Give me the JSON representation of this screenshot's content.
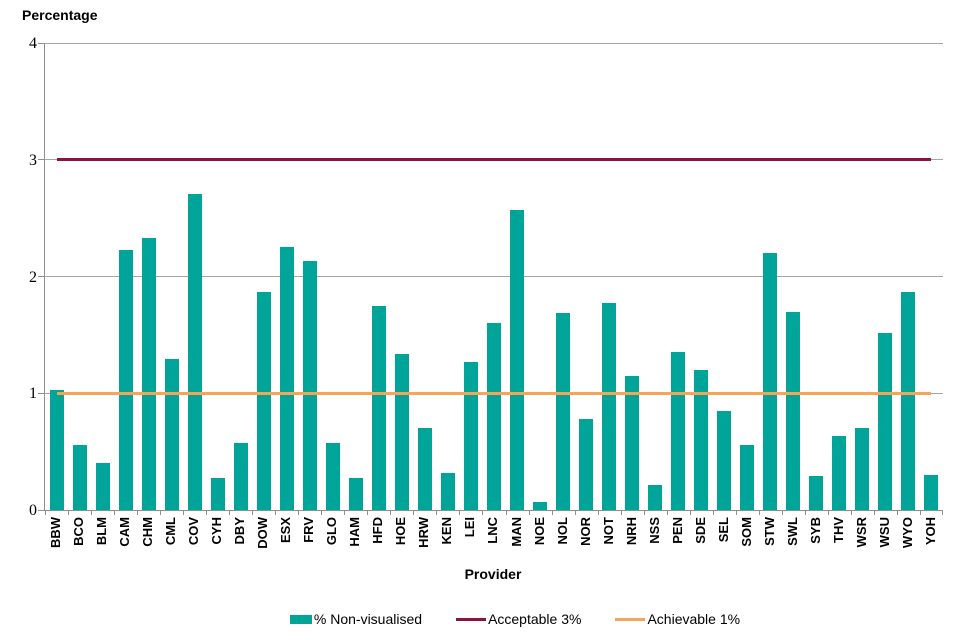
{
  "chart_data": {
    "type": "bar",
    "title": "",
    "ylabel": "Percentage",
    "xlabel": "Provider",
    "ylim": [
      0,
      4
    ],
    "yticks": [
      0,
      1,
      2,
      3,
      4
    ],
    "grid": true,
    "legend_position": "bottom",
    "axis_color": "#8E8E8E",
    "categories": [
      "BBW",
      "BCO",
      "BLM",
      "CAM",
      "CHM",
      "CML",
      "COV",
      "CYH",
      "DBY",
      "DOW",
      "ESX",
      "FRV",
      "GLO",
      "HAM",
      "HFD",
      "HOE",
      "HRW",
      "KEN",
      "LEI",
      "LNC",
      "MAN",
      "NOE",
      "NOL",
      "NOR",
      "NOT",
      "NRH",
      "NSS",
      "PEN",
      "SDE",
      "SEL",
      "SOM",
      "STW",
      "SWL",
      "SYB",
      "THV",
      "WSR",
      "WSU",
      "WYO",
      "YOH"
    ],
    "series": [
      {
        "name": "% Non-visualised",
        "type": "bar",
        "color": "#00A499",
        "values": [
          1.03,
          0.56,
          0.4,
          2.23,
          2.33,
          1.29,
          2.71,
          0.27,
          0.57,
          1.87,
          2.25,
          2.13,
          0.57,
          0.27,
          1.75,
          1.34,
          0.7,
          0.32,
          1.27,
          1.6,
          2.57,
          0.07,
          1.69,
          0.78,
          1.77,
          1.15,
          0.21,
          1.35,
          1.2,
          0.85,
          0.56,
          2.2,
          1.7,
          0.29,
          0.63,
          0.7,
          1.52,
          1.87,
          0.3
        ]
      },
      {
        "name": "Acceptable 3%",
        "type": "refline",
        "color": "#8A1538",
        "value": 3
      },
      {
        "name": "Achievable 1%",
        "type": "refline",
        "color": "#F7A35C",
        "value": 1
      }
    ]
  }
}
